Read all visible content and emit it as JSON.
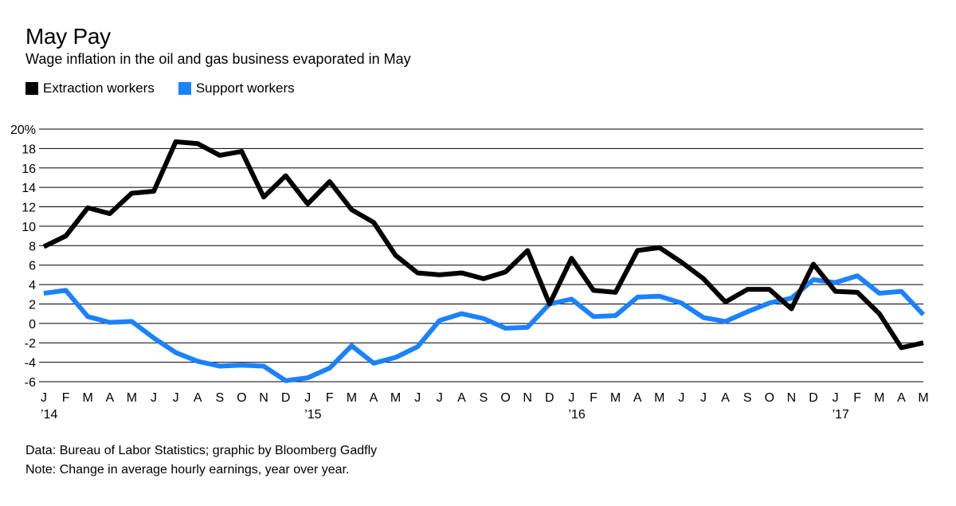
{
  "header": {
    "title": "May Pay",
    "subtitle": "Wage inflation in the oil and gas business evaporated in May"
  },
  "footer": {
    "source": "Data: Bureau of Labor Statistics; graphic by Bloomberg Gadfly",
    "note": "Note: Change in average hourly earnings, year over year."
  },
  "colors": {
    "extraction": "#000000",
    "support": "#1a82ff",
    "grid": "#000000"
  },
  "chart_data": {
    "type": "line",
    "title": "May Pay",
    "subtitle": "Wage inflation in the oil and gas business evaporated in May",
    "xlabel": "",
    "ylabel": "",
    "ylim": [
      -6,
      20
    ],
    "y_ticks": [
      -6,
      -4,
      -2,
      0,
      2,
      4,
      6,
      8,
      10,
      12,
      14,
      16,
      18,
      20
    ],
    "y_tick_labels": [
      "-6",
      "-4",
      "-2",
      "0",
      "2",
      "4",
      "6",
      "8",
      "10",
      "12",
      "14",
      "16",
      "18",
      "20%"
    ],
    "grid": true,
    "legend_position": "top-left",
    "categories": [
      "J",
      "F",
      "M",
      "A",
      "M",
      "J",
      "J",
      "A",
      "S",
      "O",
      "N",
      "D",
      "J",
      "F",
      "M",
      "A",
      "M",
      "J",
      "J",
      "A",
      "S",
      "O",
      "N",
      "D",
      "J",
      "F",
      "M",
      "A",
      "M",
      "J",
      "J",
      "A",
      "S",
      "O",
      "N",
      "D",
      "J",
      "F",
      "M",
      "A",
      "M"
    ],
    "year_labels": [
      {
        "index": 0,
        "label": "’14"
      },
      {
        "index": 12,
        "label": "’15"
      },
      {
        "index": 24,
        "label": "’16"
      },
      {
        "index": 36,
        "label": "’17"
      }
    ],
    "series": [
      {
        "name": "Extraction workers",
        "color": "#000000",
        "values": [
          7.9,
          9.0,
          11.9,
          11.3,
          13.4,
          13.6,
          18.7,
          18.5,
          17.3,
          17.7,
          13.0,
          15.2,
          12.3,
          14.6,
          11.7,
          10.4,
          7.0,
          5.2,
          5.0,
          5.2,
          4.6,
          5.3,
          7.5,
          2.0,
          6.7,
          3.4,
          3.2,
          7.5,
          7.8,
          6.3,
          4.6,
          2.2,
          3.5,
          3.5,
          1.5,
          6.1,
          3.3,
          3.2,
          1.0,
          -2.5,
          -2.0
        ]
      },
      {
        "name": "Support workers",
        "color": "#1a82ff",
        "values": [
          3.1,
          3.4,
          0.7,
          0.1,
          0.2,
          -1.5,
          -3.0,
          -3.9,
          -4.4,
          -4.3,
          -4.4,
          -5.9,
          -5.6,
          -4.6,
          -2.3,
          -4.1,
          -3.5,
          -2.4,
          0.3,
          1.0,
          0.5,
          -0.5,
          -0.4,
          2.0,
          2.5,
          0.7,
          0.8,
          2.7,
          2.8,
          2.1,
          0.6,
          0.2,
          1.2,
          2.1,
          2.6,
          4.5,
          4.2,
          4.9,
          3.1,
          3.3,
          0.9
        ]
      }
    ]
  }
}
